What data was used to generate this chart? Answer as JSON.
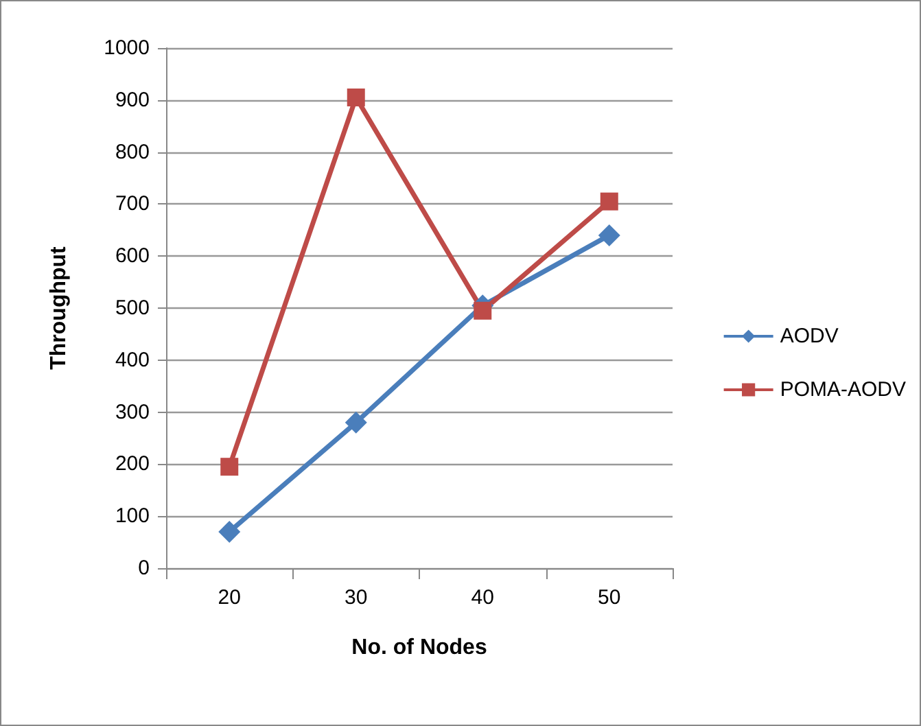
{
  "chart_data": {
    "type": "line",
    "xlabel": "No. of Nodes",
    "ylabel": "Throughput",
    "categories": [
      "20",
      "30",
      "40",
      "50"
    ],
    "series": [
      {
        "name": "AODV",
        "color": "#4a7ebb",
        "marker": "diamond",
        "values": [
          70,
          280,
          505,
          640
        ]
      },
      {
        "name": "POMA-AODV",
        "color": "#be4b48",
        "marker": "square",
        "values": [
          195,
          905,
          495,
          705
        ]
      }
    ],
    "ylim": [
      0,
      1000
    ],
    "yticks": [
      0,
      100,
      200,
      300,
      400,
      500,
      600,
      700,
      800,
      900,
      1000
    ],
    "grid": "y",
    "legend": "right"
  }
}
